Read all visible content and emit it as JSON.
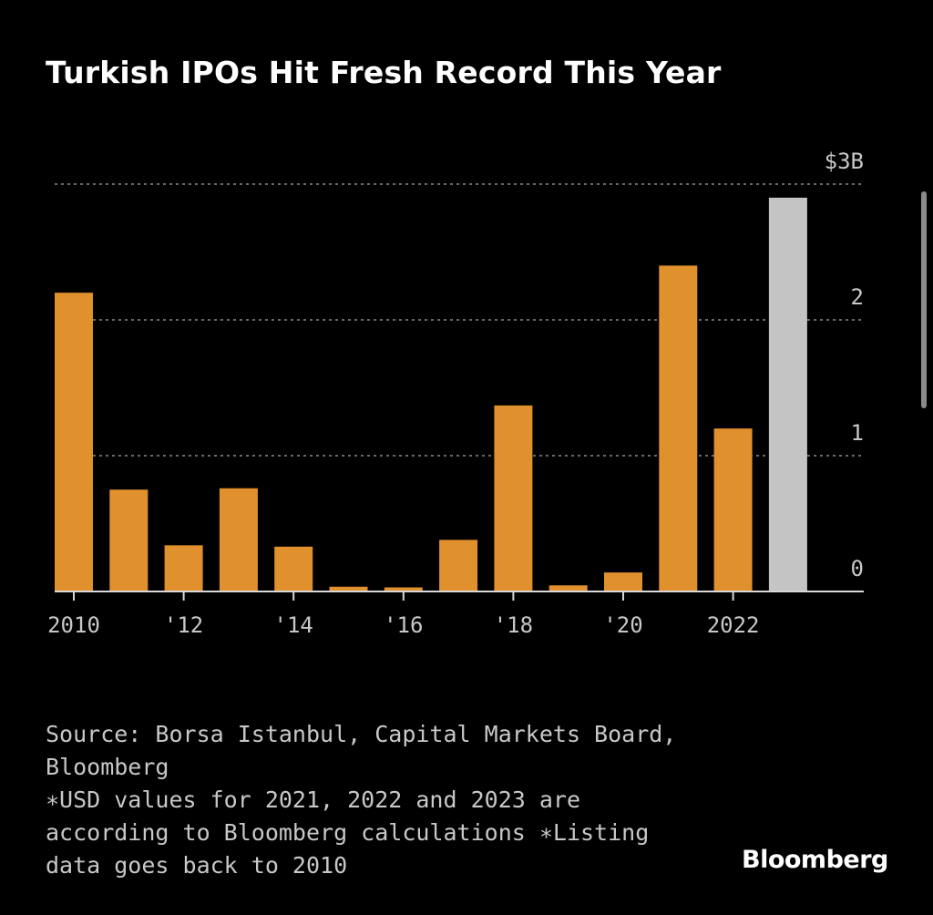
{
  "title": "Turkish IPOs Hit Fresh Record This Year",
  "colors": {
    "background": "#000000",
    "bar": "#e0902c",
    "bar_highlight": "#c4c4c4",
    "grid": "#8a8a8a",
    "text": "#c8c8c8",
    "title": "#ffffff"
  },
  "chart_data": {
    "type": "bar",
    "title": "Turkish IPOs Hit Fresh Record This Year",
    "xlabel": "",
    "ylabel": "",
    "categories": [
      "2010",
      "2011",
      "2012",
      "2013",
      "2014",
      "2015",
      "2016",
      "2017",
      "2018",
      "2019",
      "2020",
      "2021",
      "2022",
      "2023"
    ],
    "values": [
      2.2,
      0.75,
      0.34,
      0.76,
      0.33,
      0.035,
      0.03,
      0.38,
      1.37,
      0.045,
      0.14,
      2.4,
      1.2,
      2.9
    ],
    "highlight_index": 13,
    "ylim": [
      0,
      3
    ],
    "y_ticks": [
      {
        "value": 0,
        "label": "0"
      },
      {
        "value": 1,
        "label": "1"
      },
      {
        "value": 2,
        "label": "2"
      },
      {
        "value": 3,
        "label": "$3B"
      }
    ],
    "x_tick_labels": [
      {
        "index": 0,
        "label": "2010"
      },
      {
        "index": 2,
        "label": "'12"
      },
      {
        "index": 4,
        "label": "'14"
      },
      {
        "index": 6,
        "label": "'16"
      },
      {
        "index": 8,
        "label": "'18"
      },
      {
        "index": 10,
        "label": "'20"
      },
      {
        "index": 12,
        "label": "2022"
      }
    ],
    "grid": true,
    "legend": "none"
  },
  "footnote": {
    "source": "Source: Borsa Istanbul, Capital Markets Board, Bloomberg",
    "note": "∗USD values for 2021, 2022 and 2023 are according to Bloomberg calculations ∗Listing data goes back to 2010"
  },
  "brand": "Bloomberg"
}
